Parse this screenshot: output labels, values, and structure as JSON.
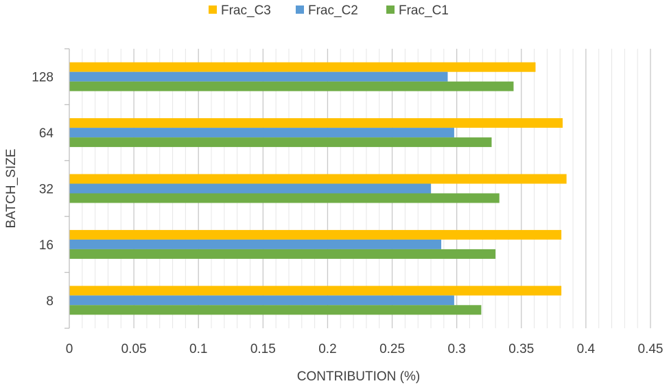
{
  "chart_data": {
    "type": "bar",
    "orientation": "horizontal",
    "categories": [
      "8",
      "16",
      "32",
      "64",
      "128"
    ],
    "series": [
      {
        "name": "Frac_C1",
        "color": "#70AD47",
        "values": [
          0.319,
          0.33,
          0.333,
          0.327,
          0.344
        ]
      },
      {
        "name": "Frac_C2",
        "color": "#5B9BD5",
        "values": [
          0.298,
          0.288,
          0.28,
          0.298,
          0.293
        ]
      },
      {
        "name": "Frac_C3",
        "color": "#FFC000",
        "values": [
          0.381,
          0.381,
          0.385,
          0.382,
          0.361
        ]
      }
    ],
    "legend_order": [
      "Frac_C3",
      "Frac_C2",
      "Frac_C1"
    ],
    "xlabel": "CONTRIBUTION (%)",
    "ylabel": "BATCH_SIZE",
    "xlim": [
      0,
      0.45
    ],
    "xticks": [
      "0",
      "0.05",
      "0.1",
      "0.15",
      "0.2",
      "0.25",
      "0.3",
      "0.35",
      "0.4",
      "0.45"
    ],
    "legend_position": "top-center",
    "grid": true
  }
}
